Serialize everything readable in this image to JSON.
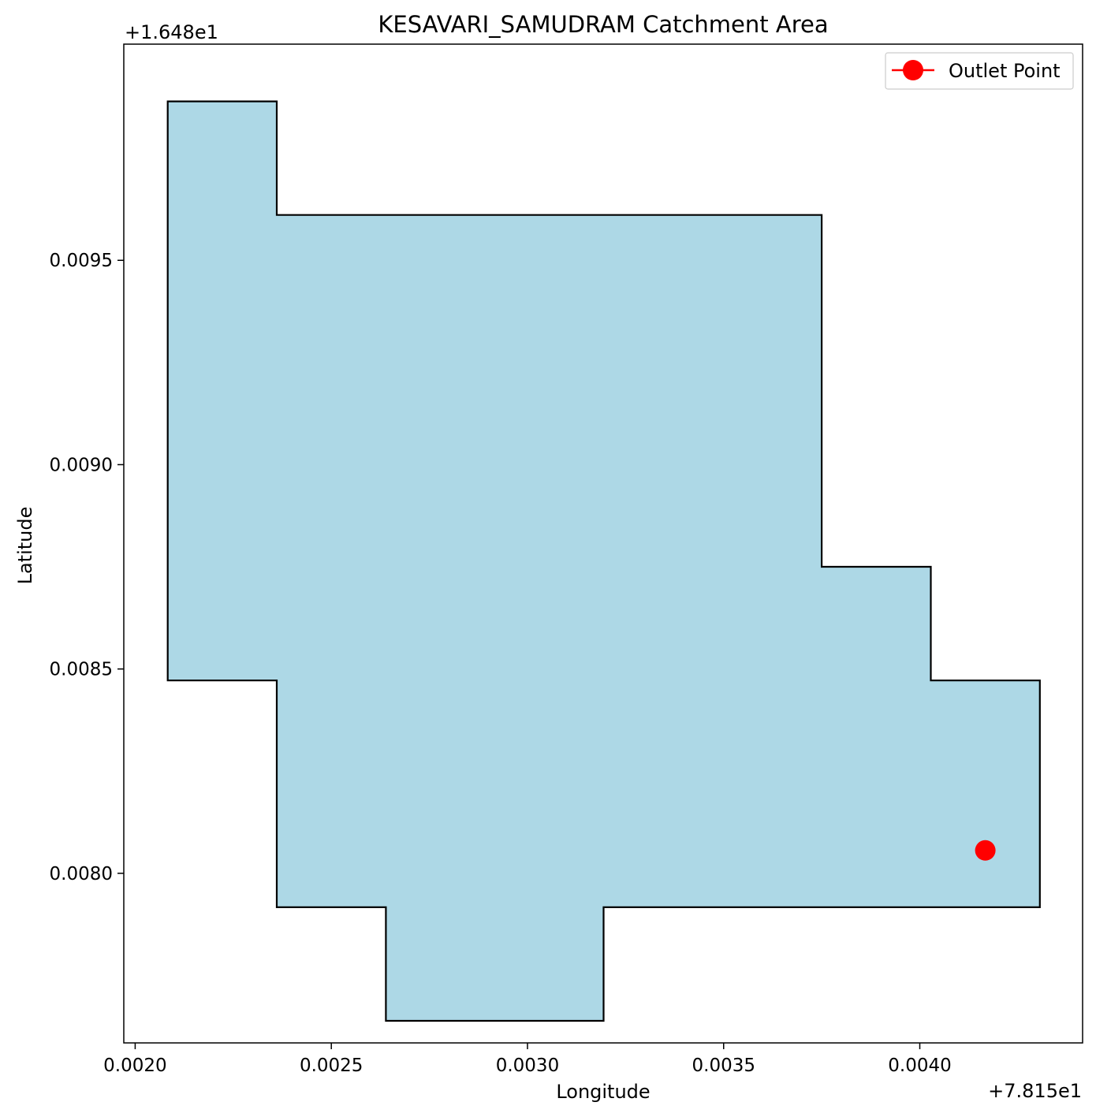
{
  "chart_data": {
    "type": "map",
    "title": "KESAVARI_SAMUDRAM Catchment Area",
    "xlabel": "Longitude",
    "ylabel": "Latitude",
    "x_offset_label": "+7.815e1",
    "y_offset_label": "+1.648e1",
    "x_offset": 78.15,
    "y_offset": 16.48,
    "xlim": [
      0.001971,
      0.004415
    ],
    "ylim": [
      0.007585,
      0.010029
    ],
    "xticks": [
      {
        "value": 0.002,
        "label": "0.0020"
      },
      {
        "value": 0.0025,
        "label": "0.0025"
      },
      {
        "value": 0.003,
        "label": "0.0030"
      },
      {
        "value": 0.0035,
        "label": "0.0035"
      },
      {
        "value": 0.004,
        "label": "0.0040"
      }
    ],
    "yticks": [
      {
        "value": 0.0095,
        "label": "0.0095"
      },
      {
        "value": 0.009,
        "label": "0.0090"
      },
      {
        "value": 0.0085,
        "label": "0.0085"
      },
      {
        "value": 0.008,
        "label": "0.0080"
      }
    ],
    "catchment_polygon": [
      [
        0.002083,
        0.009889
      ],
      [
        0.002361,
        0.009889
      ],
      [
        0.002361,
        0.009611
      ],
      [
        0.00375,
        0.009611
      ],
      [
        0.00375,
        0.00875
      ],
      [
        0.004028,
        0.00875
      ],
      [
        0.004028,
        0.008472
      ],
      [
        0.004306,
        0.008472
      ],
      [
        0.004306,
        0.007917
      ],
      [
        0.003194,
        0.007917
      ],
      [
        0.003194,
        0.007639
      ],
      [
        0.002639,
        0.007639
      ],
      [
        0.002639,
        0.007917
      ],
      [
        0.002361,
        0.007917
      ],
      [
        0.002361,
        0.008472
      ],
      [
        0.002083,
        0.008472
      ]
    ],
    "outlet_point": {
      "name": "Outlet Point",
      "x": 0.004167,
      "y": 0.008056
    },
    "legend": {
      "position": "top-right",
      "entries": [
        "Outlet Point"
      ]
    },
    "colors": {
      "polygon_fill": "#add8e6",
      "polygon_edge": "#000000",
      "outlet": "#ff0000",
      "legend_border": "#cccccc"
    },
    "grid": false
  }
}
